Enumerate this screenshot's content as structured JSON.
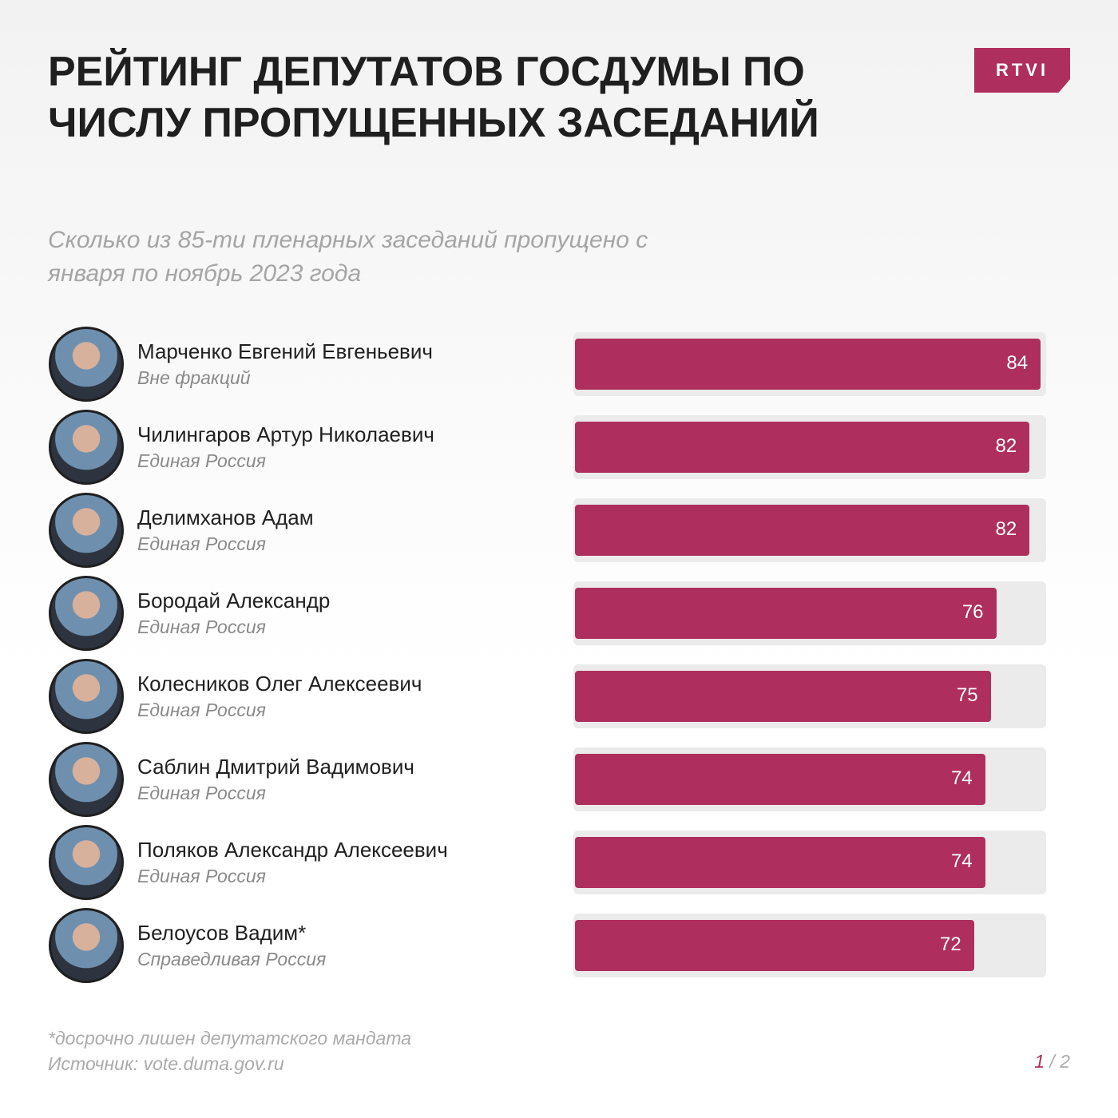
{
  "chart_data": {
    "type": "bar",
    "title": "РЕЙТИНГ ДЕПУТАТОВ ГОСДУМЫ ПО ЧИСЛУ ПРОПУЩЕННЫХ ЗАСЕДАНИЙ",
    "subtitle": "Сколько из 85-ти пленарных заседаний пропущено с января по ноябрь 2023 года",
    "categories": [
      "Марченко Евгений Евгеньевич",
      "Чилингаров Артур Николаевич",
      "Делимханов Адам",
      "Бородай Александр",
      "Колесников Олег Алексеевич",
      "Саблин Дмитрий Вадимович",
      "Поляков Александр Алексеевич",
      "Белоусов Вадим*"
    ],
    "groups": [
      "Вне фракций",
      "Единая Россия",
      "Единая Россия",
      "Единая Россия",
      "Единая Россия",
      "Единая Россия",
      "Единая Россия",
      "Справедливая Россия"
    ],
    "values": [
      84,
      82,
      82,
      76,
      75,
      74,
      74,
      72
    ],
    "xlim": [
      0,
      85
    ],
    "color": "#ae2f5d",
    "track_color": "#ebebeb",
    "footnote": "*досрочно лишен депутатского мандата",
    "source": "Источник: vote.duma.gov.ru"
  },
  "logo": "RTVI",
  "pager": {
    "current": "1",
    "rest": "/ 2"
  }
}
